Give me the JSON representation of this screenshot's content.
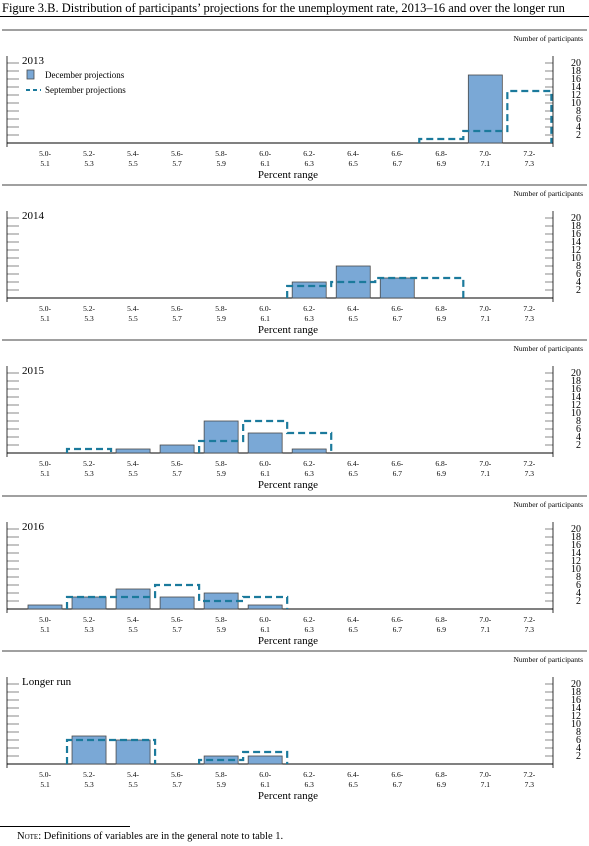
{
  "figure_title": "Figure 3.B. Distribution of participants’ projections for the unemployment rate, 2013–16 and over the longer run",
  "note": {
    "label": "Note:",
    "text": " Definitions of variables are in the general note to table 1."
  },
  "colors": {
    "december": "#7aa8d6",
    "december_edge": "#4a4a4a",
    "september": "#1b7a9c"
  },
  "chart_data": [
    {
      "type": "bar",
      "title": "2013",
      "ylabel": "Number of participants",
      "xlabel": "Percent range",
      "ylim": [
        0,
        20
      ],
      "yticks": [
        "2",
        "4",
        "6",
        "8",
        "10",
        "12",
        "14",
        "16",
        "18",
        "20"
      ],
      "categories": [
        "5.0-\n5.1",
        "5.2-\n5.3",
        "5.4-\n5.5",
        "5.6-\n5.7",
        "5.8-\n5.9",
        "6.0-\n6.1",
        "6.2-\n6.3",
        "6.4-\n6.5",
        "6.6-\n6.7",
        "6.8-\n6.9",
        "7.0-\n7.1",
        "7.2-\n7.3"
      ],
      "legend": [
        "December projections",
        "September projections"
      ],
      "legend_position": "top-left",
      "series": [
        {
          "name": "December projections",
          "style": "bar",
          "values": [
            0,
            0,
            0,
            0,
            0,
            0,
            0,
            0,
            0,
            0,
            17,
            0
          ]
        },
        {
          "name": "September projections",
          "style": "dashed-outline",
          "values": [
            0,
            0,
            0,
            0,
            0,
            0,
            0,
            0,
            0,
            1,
            3,
            13
          ]
        }
      ]
    },
    {
      "type": "bar",
      "title": "2014",
      "ylabel": "Number of participants",
      "xlabel": "Percent range",
      "ylim": [
        0,
        20
      ],
      "yticks": [
        "2",
        "4",
        "6",
        "8",
        "10",
        "12",
        "14",
        "16",
        "18",
        "20"
      ],
      "categories": [
        "5.0-\n5.1",
        "5.2-\n5.3",
        "5.4-\n5.5",
        "5.6-\n5.7",
        "5.8-\n5.9",
        "6.0-\n6.1",
        "6.2-\n6.3",
        "6.4-\n6.5",
        "6.6-\n6.7",
        "6.8-\n6.9",
        "7.0-\n7.1",
        "7.2-\n7.3"
      ],
      "series": [
        {
          "name": "December projections",
          "style": "bar",
          "values": [
            0,
            0,
            0,
            0,
            0,
            0,
            4,
            8,
            5,
            0,
            0,
            0
          ]
        },
        {
          "name": "September projections",
          "style": "dashed-outline",
          "values": [
            0,
            0,
            0,
            0,
            0,
            0,
            3,
            4,
            5,
            5,
            0,
            0
          ]
        }
      ]
    },
    {
      "type": "bar",
      "title": "2015",
      "ylabel": "Number of participants",
      "xlabel": "Percent range",
      "ylim": [
        0,
        20
      ],
      "yticks": [
        "2",
        "4",
        "6",
        "8",
        "10",
        "12",
        "14",
        "16",
        "18",
        "20"
      ],
      "categories": [
        "5.0-\n5.1",
        "5.2-\n5.3",
        "5.4-\n5.5",
        "5.6-\n5.7",
        "5.8-\n5.9",
        "6.0-\n6.1",
        "6.2-\n6.3",
        "6.4-\n6.5",
        "6.6-\n6.7",
        "6.8-\n6.9",
        "7.0-\n7.1",
        "7.2-\n7.3"
      ],
      "series": [
        {
          "name": "December projections",
          "style": "bar",
          "values": [
            0,
            0,
            1,
            2,
            8,
            5,
            1,
            0,
            0,
            0,
            0,
            0
          ]
        },
        {
          "name": "September projections",
          "style": "dashed-outline",
          "values": [
            0,
            1,
            0,
            0,
            3,
            8,
            5,
            0,
            0,
            0,
            0,
            0
          ]
        }
      ]
    },
    {
      "type": "bar",
      "title": "2016",
      "ylabel": "Number of participants",
      "xlabel": "Percent range",
      "ylim": [
        0,
        20
      ],
      "yticks": [
        "2",
        "4",
        "6",
        "8",
        "10",
        "12",
        "14",
        "16",
        "18",
        "20"
      ],
      "categories": [
        "5.0-\n5.1",
        "5.2-\n5.3",
        "5.4-\n5.5",
        "5.6-\n5.7",
        "5.8-\n5.9",
        "6.0-\n6.1",
        "6.2-\n6.3",
        "6.4-\n6.5",
        "6.6-\n6.7",
        "6.8-\n6.9",
        "7.0-\n7.1",
        "7.2-\n7.3"
      ],
      "series": [
        {
          "name": "December projections",
          "style": "bar",
          "values": [
            1,
            3,
            5,
            3,
            4,
            1,
            0,
            0,
            0,
            0,
            0,
            0
          ]
        },
        {
          "name": "September projections",
          "style": "dashed-outline",
          "values": [
            0,
            3,
            3,
            6,
            2,
            3,
            0,
            0,
            0,
            0,
            0,
            0
          ]
        }
      ]
    },
    {
      "type": "bar",
      "title": "Longer run",
      "ylabel": "Number of participants",
      "xlabel": "Percent range",
      "ylim": [
        0,
        20
      ],
      "yticks": [
        "2",
        "4",
        "6",
        "8",
        "10",
        "12",
        "14",
        "16",
        "18",
        "20"
      ],
      "categories": [
        "5.0-\n5.1",
        "5.2-\n5.3",
        "5.4-\n5.5",
        "5.6-\n5.7",
        "5.8-\n5.9",
        "6.0-\n6.1",
        "6.2-\n6.3",
        "6.4-\n6.5",
        "6.6-\n6.7",
        "6.8-\n6.9",
        "7.0-\n7.1",
        "7.2-\n7.3"
      ],
      "series": [
        {
          "name": "December projections",
          "style": "bar",
          "values": [
            0,
            7,
            6,
            0,
            2,
            2,
            0,
            0,
            0,
            0,
            0,
            0
          ]
        },
        {
          "name": "September projections",
          "style": "dashed-outline",
          "values": [
            0,
            6,
            6,
            0,
            1,
            3,
            0,
            0,
            0,
            0,
            0,
            0
          ]
        }
      ]
    }
  ]
}
